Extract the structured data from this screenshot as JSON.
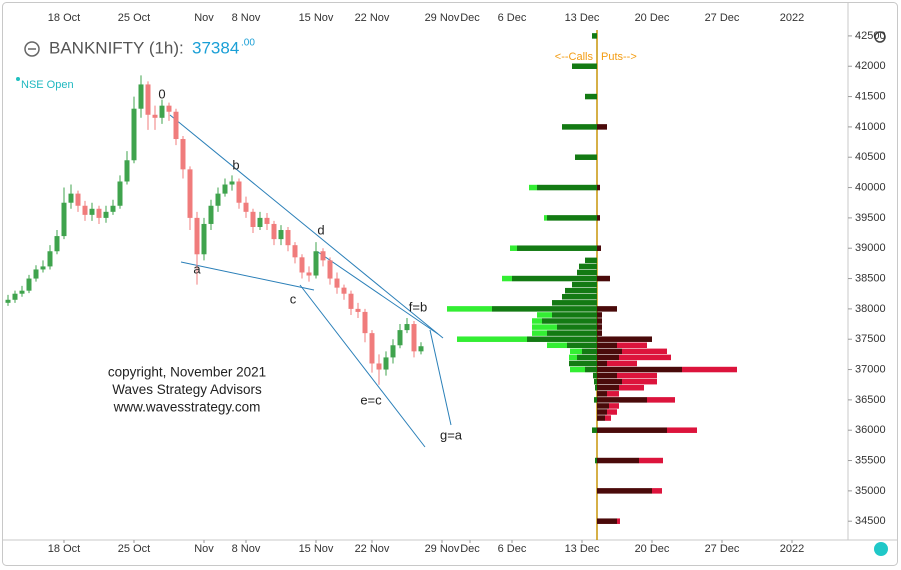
{
  "chart_data": [
    {
      "type": "candlestick",
      "title": "BANKNIFTY (1h):",
      "last_price": "37384",
      "last_price_decimals": ".00",
      "subtitle": "NSE Open",
      "up_color": "#3fa34d",
      "down_color": "#f07c7c",
      "x": [
        -4,
        -3.5,
        -3,
        -2.5,
        -2,
        -1.5,
        -1,
        -0.5,
        0,
        0.5,
        1,
        1.5,
        2,
        2.5,
        3,
        3.5,
        4,
        4.5,
        5,
        5.5,
        6,
        6.5,
        7,
        7.5,
        8,
        8.5,
        9,
        9.5,
        10,
        10.5,
        11,
        11.5,
        12,
        12.5,
        13,
        13.5,
        14,
        14.5,
        15,
        15.5,
        16,
        16.5,
        17,
        17.5,
        18,
        18.5,
        19,
        19.5,
        20,
        20.5,
        21,
        21.5,
        22,
        22.5,
        23,
        23.5,
        24,
        24.5,
        25,
        25.5
      ],
      "open": [
        38100,
        38150,
        38250,
        38300,
        38500,
        38650,
        38700,
        38950,
        39200,
        39750,
        39900,
        39700,
        39550,
        39650,
        39500,
        39600,
        39700,
        40100,
        40450,
        41300,
        41700,
        41200,
        41150,
        41350,
        41250,
        40800,
        40300,
        39500,
        38900,
        39400,
        39700,
        39900,
        40050,
        40100,
        39750,
        39600,
        39350,
        39500,
        39400,
        39150,
        39300,
        39050,
        38850,
        38600,
        38550,
        38950,
        38800,
        38500,
        38350,
        38250,
        38000,
        37950,
        37600,
        37100,
        37000,
        37200,
        37400,
        37650,
        37750,
        37300
      ],
      "high": [
        38230,
        38300,
        38380,
        38560,
        38720,
        38800,
        39050,
        39300,
        40000,
        40050,
        39950,
        39780,
        39750,
        39700,
        39700,
        39800,
        40200,
        40600,
        41500,
        41850,
        41750,
        41350,
        41450,
        41400,
        41300,
        40850,
        40350,
        39600,
        39500,
        39800,
        40000,
        40150,
        40200,
        40150,
        39850,
        39650,
        39600,
        39580,
        39450,
        39380,
        39350,
        39100,
        38900,
        38700,
        39100,
        39000,
        38850,
        38600,
        38400,
        38300,
        38100,
        38000,
        37650,
        37250,
        37300,
        37500,
        37750,
        37850,
        37800,
        37450
      ],
      "low": [
        38050,
        38100,
        38200,
        38260,
        38450,
        38600,
        38650,
        38900,
        39150,
        39650,
        39600,
        39450,
        39450,
        39400,
        39420,
        39550,
        39650,
        40050,
        40400,
        41150,
        40950,
        40950,
        41050,
        41100,
        40700,
        40150,
        39300,
        38400,
        38800,
        39300,
        39600,
        39850,
        39950,
        39650,
        39500,
        39250,
        39300,
        39300,
        39050,
        39050,
        38950,
        38750,
        38500,
        38450,
        38500,
        38700,
        38400,
        38250,
        38150,
        37900,
        37850,
        37450,
        36950,
        36750,
        36900,
        37100,
        37350,
        37600,
        37200,
        37250
      ],
      "close": [
        38150,
        38250,
        38300,
        38500,
        38650,
        38700,
        38950,
        39200,
        39750,
        39900,
        39700,
        39550,
        39650,
        39500,
        39600,
        39700,
        40100,
        40450,
        41300,
        41700,
        41200,
        41150,
        41350,
        41250,
        40800,
        40300,
        39500,
        38900,
        39400,
        39700,
        39900,
        40050,
        40100,
        39750,
        39600,
        39350,
        39500,
        39400,
        39150,
        39300,
        39050,
        38850,
        38600,
        38550,
        38950,
        38800,
        38500,
        38350,
        38250,
        38000,
        37950,
        37600,
        37100,
        37000,
        37200,
        37400,
        37650,
        37750,
        37300,
        37384
      ],
      "xlim": [
        -4,
        56
      ],
      "xticks": [
        {
          "value": 0,
          "label": "18 Oct"
        },
        {
          "value": 5,
          "label": "25 Oct"
        },
        {
          "value": 10,
          "label": "Nov"
        },
        {
          "value": 13,
          "label": "8 Nov"
        },
        {
          "value": 18,
          "label": "15 Nov"
        },
        {
          "value": 22,
          "label": "22 Nov"
        },
        {
          "value": 27,
          "label": "29 Nov"
        },
        {
          "value": 29,
          "label": "Dec"
        },
        {
          "value": 32,
          "label": "6 Dec"
        },
        {
          "value": 37,
          "label": "13 Dec"
        },
        {
          "value": 42,
          "label": "20 Dec"
        },
        {
          "value": 47,
          "label": "27 Dec"
        },
        {
          "value": 52,
          "label": "2022"
        }
      ],
      "ylim": [
        34190,
        42960
      ],
      "yticks": [
        34500,
        35000,
        35500,
        36000,
        36500,
        37000,
        37500,
        38000,
        38500,
        39000,
        39500,
        40000,
        40500,
        41000,
        41500,
        42000,
        42500
      ],
      "annotations": [
        "0",
        "b",
        "d",
        "f=b",
        "a",
        "c",
        "e=c",
        "g=a"
      ],
      "copyright": [
        "copyright, November 2021",
        "Waves Strategy Advisors",
        "www.wavesstrategy.com"
      ]
    },
    {
      "type": "oi-bar",
      "xlim": [
        0,
        160
      ],
      "y": [
        42500,
        42000,
        41500,
        41000,
        40500,
        40000,
        39500,
        39000,
        38800,
        38700,
        38600,
        38500,
        38400,
        38300,
        38200,
        38100,
        38000,
        37900,
        37800,
        37700,
        37600,
        37500,
        37400,
        37300,
        37200,
        37100,
        37000,
        36900,
        36800,
        36700,
        36600,
        36500,
        36400,
        36300,
        36200,
        36000,
        35500,
        35000,
        34500
      ],
      "series": [
        {
          "name": "<--Calls",
          "color": "#137a13",
          "color2": "#33ee33",
          "values": [
            5,
            25,
            12,
            35,
            22,
            60,
            50,
            80,
            12,
            18,
            20,
            85,
            25,
            32,
            35,
            45,
            105,
            45,
            55,
            40,
            50,
            70,
            30,
            15,
            20,
            28,
            12,
            4,
            3,
            2,
            0,
            3,
            0,
            0,
            0,
            5,
            2,
            0,
            0
          ],
          "values2": [
            0,
            0,
            0,
            0,
            0,
            8,
            3,
            7,
            0,
            0,
            0,
            10,
            0,
            0,
            0,
            0,
            45,
            15,
            10,
            25,
            15,
            70,
            20,
            12,
            8,
            0,
            15,
            0,
            0,
            0,
            0,
            0,
            0,
            0,
            0,
            0,
            0,
            0,
            0
          ]
        },
        {
          "name": "Puts-->",
          "color": "#4a0a0a",
          "color2": "#dc143c",
          "values": [
            0,
            0,
            0,
            10,
            0,
            3,
            3,
            4,
            0,
            0,
            0,
            13,
            0,
            0,
            0,
            0,
            20,
            5,
            5,
            5,
            5,
            55,
            20,
            25,
            22,
            10,
            85,
            20,
            25,
            22,
            10,
            50,
            12,
            10,
            8,
            70,
            42,
            55,
            20
          ],
          "values2": [
            0,
            0,
            0,
            0,
            0,
            0,
            0,
            0,
            0,
            0,
            0,
            0,
            0,
            0,
            0,
            0,
            0,
            0,
            0,
            0,
            0,
            0,
            30,
            45,
            52,
            30,
            55,
            40,
            35,
            25,
            12,
            28,
            10,
            10,
            6,
            30,
            24,
            10,
            3
          ]
        }
      ]
    }
  ]
}
